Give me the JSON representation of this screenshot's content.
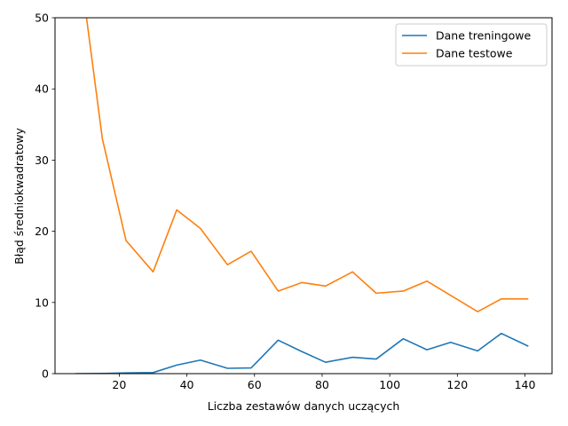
{
  "chart_data": {
    "type": "line",
    "title": "",
    "xlabel": "Liczba zestawów danych uczących",
    "ylabel": "Błąd średniokwadratowy",
    "xlim": [
      1,
      148
    ],
    "ylim": [
      0,
      50
    ],
    "xticks": [
      20,
      40,
      60,
      80,
      100,
      120,
      140
    ],
    "yticks": [
      0,
      10,
      20,
      30,
      40,
      50
    ],
    "grid": false,
    "legend_position": "top-right",
    "series": [
      {
        "name": "Dane treningowe",
        "color": "#1f77b4",
        "x": [
          7,
          15,
          22,
          30,
          37,
          44,
          52,
          59,
          67,
          74,
          81,
          89,
          96,
          104,
          111,
          118,
          126,
          133,
          141
        ],
        "y": [
          0.0,
          0.03,
          0.1,
          0.15,
          1.2,
          1.9,
          0.75,
          0.8,
          4.7,
          3.1,
          1.6,
          2.3,
          2.05,
          4.9,
          3.35,
          4.4,
          3.2,
          5.65,
          3.85
        ]
      },
      {
        "name": "Dane testowe",
        "color": "#ff7f0e",
        "x": [
          7,
          15,
          22,
          30,
          37,
          44,
          52,
          59,
          67,
          74,
          81,
          89,
          96,
          104,
          111,
          118,
          126,
          133,
          141
        ],
        "y": [
          62.0,
          33.0,
          18.7,
          14.3,
          23.0,
          20.4,
          15.3,
          17.2,
          11.6,
          12.8,
          12.3,
          14.3,
          11.3,
          11.6,
          13.0,
          11.0,
          8.7,
          10.5,
          10.5
        ]
      }
    ]
  }
}
